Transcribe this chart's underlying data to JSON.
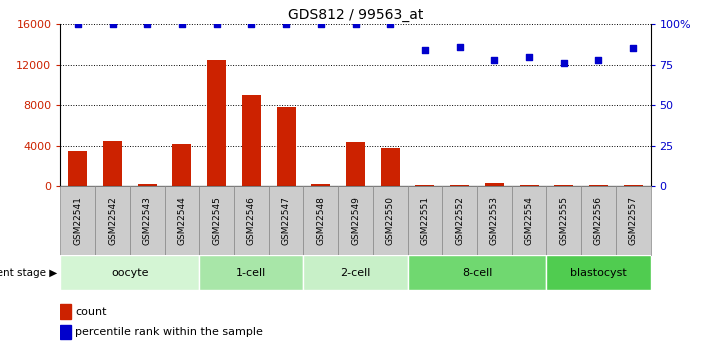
{
  "title": "GDS812 / 99563_at",
  "samples": [
    "GSM22541",
    "GSM22542",
    "GSM22543",
    "GSM22544",
    "GSM22545",
    "GSM22546",
    "GSM22547",
    "GSM22548",
    "GSM22549",
    "GSM22550",
    "GSM22551",
    "GSM22552",
    "GSM22553",
    "GSM22554",
    "GSM22555",
    "GSM22556",
    "GSM22557"
  ],
  "counts": [
    3500,
    4500,
    200,
    4200,
    12500,
    9000,
    7800,
    200,
    4400,
    3800,
    100,
    100,
    350,
    100,
    100,
    100,
    100
  ],
  "percentiles": [
    100,
    100,
    100,
    100,
    100,
    100,
    100,
    100,
    100,
    100,
    84,
    86,
    78,
    80,
    76,
    78,
    85
  ],
  "stages": [
    {
      "label": "oocyte",
      "start": 0,
      "end": 4,
      "color": "#d4f5d4"
    },
    {
      "label": "1-cell",
      "start": 4,
      "end": 7,
      "color": "#a8e6a8"
    },
    {
      "label": "2-cell",
      "start": 7,
      "end": 10,
      "color": "#c8f0c8"
    },
    {
      "label": "8-cell",
      "start": 10,
      "end": 14,
      "color": "#70d870"
    },
    {
      "label": "blastocyst",
      "start": 14,
      "end": 17,
      "color": "#50cc50"
    }
  ],
  "ylim_left": [
    0,
    16000
  ],
  "ylim_right": [
    0,
    100
  ],
  "yticks_left": [
    0,
    4000,
    8000,
    12000,
    16000
  ],
  "yticks_right": [
    0,
    25,
    50,
    75,
    100
  ],
  "yticklabels_right": [
    "0",
    "25",
    "50",
    "75",
    "100%"
  ],
  "bar_color": "#cc2200",
  "dot_color": "#0000cc",
  "bg_color": "#ffffff",
  "legend_count_label": "count",
  "legend_pct_label": "percentile rank within the sample",
  "dev_stage_label": "development stage",
  "sample_box_color": "#cccccc",
  "sample_box_edge": "#888888"
}
